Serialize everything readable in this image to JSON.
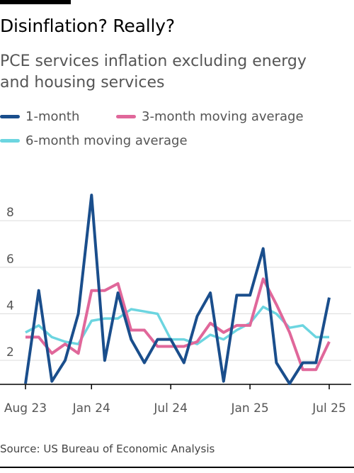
{
  "title": "Disinflation? Really?",
  "subtitle": "PCE services inflation excluding energy and housing services",
  "source": "Source: US Bureau of Economic Analysis",
  "colors": {
    "one_month": "#1a4e8c",
    "three_month": "#e0679a",
    "six_month": "#6cd5e0",
    "grid": "#dddddd",
    "axis": "#000000",
    "label": "#555555"
  },
  "chart_data": {
    "type": "line",
    "xlabel": "",
    "ylabel": "",
    "ylim": [
      1,
      9.5
    ],
    "grid": true,
    "legend_placement": "top",
    "x": [
      "2023-08",
      "2023-09",
      "2023-10",
      "2023-11",
      "2023-12",
      "2024-01",
      "2024-02",
      "2024-03",
      "2024-04",
      "2024-05",
      "2024-06",
      "2024-07",
      "2024-08",
      "2024-09",
      "2024-10",
      "2024-11",
      "2024-12",
      "2025-01",
      "2025-02",
      "2025-03",
      "2025-04",
      "2025-05",
      "2025-06",
      "2025-07"
    ],
    "x_tick_labels": [
      {
        "index": 0,
        "label": "Aug 23"
      },
      {
        "index": 5,
        "label": "Jan 24"
      },
      {
        "index": 11,
        "label": "Jul 24"
      },
      {
        "index": 17,
        "label": "Jan 25"
      },
      {
        "index": 23,
        "label": "Jul 25"
      }
    ],
    "y_ticks": [
      2,
      4,
      6,
      8
    ],
    "series": [
      {
        "name": "1-month",
        "color": "#1a4e8c",
        "values": [
          1.0,
          5.0,
          1.1,
          2.0,
          4.0,
          9.1,
          2.0,
          4.9,
          2.9,
          1.9,
          2.9,
          2.9,
          1.9,
          3.9,
          4.9,
          1.1,
          4.8,
          4.8,
          6.8,
          1.9,
          1.0,
          1.9,
          1.9,
          4.7
        ]
      },
      {
        "name": "3-month moving average",
        "color": "#e0679a",
        "values": [
          3.0,
          3.0,
          2.3,
          2.7,
          2.3,
          5.0,
          5.0,
          5.3,
          3.3,
          3.3,
          2.6,
          2.6,
          2.6,
          2.8,
          3.6,
          3.2,
          3.5,
          3.5,
          5.5,
          4.4,
          3.2,
          1.6,
          1.6,
          2.8
        ]
      },
      {
        "name": "6-month moving average",
        "color": "#6cd5e0",
        "values": [
          3.2,
          3.5,
          3.0,
          2.8,
          2.7,
          3.7,
          3.8,
          3.8,
          4.2,
          4.1,
          4.0,
          2.9,
          2.9,
          2.7,
          3.1,
          2.9,
          3.3,
          3.6,
          4.3,
          4.0,
          3.4,
          3.5,
          3.0,
          3.0
        ]
      }
    ]
  }
}
